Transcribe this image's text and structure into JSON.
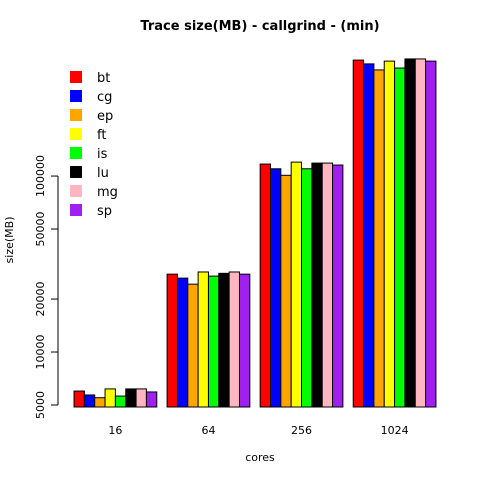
{
  "chart_data": {
    "type": "bar",
    "title": "Trace size(MB) - callgrind - (min)",
    "x_label": "cores",
    "y_label": "size(MB)",
    "categories": [
      "16",
      "64",
      "256",
      "1024"
    ],
    "series": [
      {
        "name": "bt",
        "color": "#ff0000",
        "values": [
          6000,
          27700,
          117000,
          456000
        ]
      },
      {
        "name": "cg",
        "color": "#0000ff",
        "values": [
          5700,
          26300,
          110000,
          434000
        ]
      },
      {
        "name": "ep",
        "color": "#ffa500",
        "values": [
          5500,
          24300,
          101000,
          401000
        ]
      },
      {
        "name": "ft",
        "color": "#ffff00",
        "values": [
          6170,
          28500,
          120000,
          450000
        ]
      },
      {
        "name": "is",
        "color": "#00ff00",
        "values": [
          5620,
          27000,
          110000,
          411000
        ]
      },
      {
        "name": "lu",
        "color": "#000000",
        "values": [
          6170,
          28000,
          118500,
          463000
        ]
      },
      {
        "name": "mg",
        "color": "#ffb6c1",
        "values": [
          6170,
          28500,
          118500,
          463000
        ]
      },
      {
        "name": "sp",
        "color": "#a020f0",
        "values": [
          5930,
          27700,
          115500,
          450000
        ]
      }
    ],
    "log_y": true,
    "ylim": [
      4870,
      560000
    ],
    "yticks": [
      5000,
      10000,
      20000,
      50000,
      100000
    ],
    "legend": "top-left"
  }
}
